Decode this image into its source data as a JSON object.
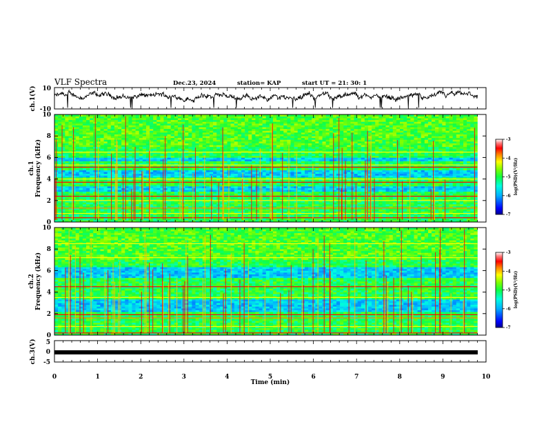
{
  "header": {
    "title": "VLF Spectra",
    "date": "Dec.23, 2024",
    "station": "station= KAP",
    "start_ut": "start  UT  =   21: 30: 1"
  },
  "chart_data": [
    {
      "id": "ch1-waveform",
      "type": "line",
      "ylabel": "ch.1(V)",
      "ylim": [
        -10,
        10
      ],
      "yticks": [
        10,
        -10
      ],
      "xlim": [
        0,
        10
      ],
      "description_series": "broadband VLF waveform amplitude, noisy signal around ~2 V"
    },
    {
      "id": "ch1-spectrogram",
      "type": "heatmap",
      "ylabel": "ch.1\nFrequency (kHz)",
      "ylabel_line1": "ch.1",
      "ylabel_line2": "Frequency (kHz)",
      "ylim": [
        0,
        10
      ],
      "yticks": [
        0,
        2,
        4,
        6,
        8,
        10
      ],
      "xlim": [
        0,
        9.8
      ],
      "colorbar": {
        "label": "log(PSD)(V²/Hz)",
        "range": [
          -7,
          -3
        ],
        "ticks": [
          "-3",
          "-4",
          "-5",
          "-6",
          "-7"
        ]
      },
      "low_power_bands_khz": [
        [
          2.8,
          3.4
        ],
        [
          4.1,
          4.9
        ],
        [
          5.6,
          6.0
        ]
      ]
    },
    {
      "id": "ch2-spectrogram",
      "type": "heatmap",
      "ylabel_line1": "ch.2",
      "ylabel_line2": "Frequency (kHz)",
      "ylim": [
        0,
        10
      ],
      "yticks": [
        0,
        2,
        4,
        6,
        8,
        10
      ],
      "xlim": [
        0,
        9.8
      ],
      "colorbar": {
        "label": "log(PSD)(V²/Hz)",
        "range": [
          -7,
          -3
        ],
        "ticks": [
          "-3",
          "-4",
          "-5",
          "-6",
          "-7"
        ]
      },
      "low_power_bands_khz": [
        [
          2.2,
          3.4
        ],
        [
          5.4,
          6.3
        ]
      ]
    },
    {
      "id": "ch3-waveform",
      "type": "line",
      "ylabel": "ch.3(V)",
      "ylim": [
        -5,
        5
      ],
      "yticks": [
        5,
        0,
        -5
      ],
      "xlim": [
        0,
        10
      ],
      "description_series": "flat signal near -0.5 V"
    }
  ],
  "xaxis": {
    "label": "Time (min)",
    "ticks": [
      "0",
      "1",
      "2",
      "3",
      "4",
      "5",
      "6",
      "7",
      "8",
      "9",
      "10"
    ]
  },
  "colors": {
    "frame": "#000000",
    "colormap": [
      "#000090",
      "#0000ff",
      "#00b0ff",
      "#00ffe0",
      "#10ff40",
      "#80ff00",
      "#ffff00",
      "#ff8000",
      "#ff0000",
      "#e00000",
      "#ffffff"
    ]
  }
}
